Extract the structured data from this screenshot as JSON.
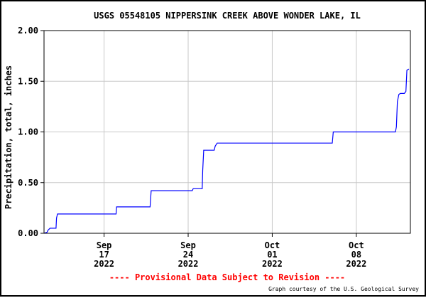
{
  "chart_data": {
    "type": "line",
    "title": "USGS 05548105 NIPPERSINK CREEK ABOVE WONDER LAKE, IL",
    "ylabel": "Precipitation, total, inches",
    "xlabel": "",
    "ylim": [
      0,
      2.0
    ],
    "xlim": [
      "2022-09-12",
      "2022-10-12"
    ],
    "y_ticks": [
      "0.00",
      "0.50",
      "1.00",
      "1.50",
      "2.00"
    ],
    "x_ticks": [
      {
        "date": "2022-09-17",
        "label": [
          "Sep",
          "17",
          "2022"
        ]
      },
      {
        "date": "2022-09-24",
        "label": [
          "Sep",
          "24",
          "2022"
        ]
      },
      {
        "date": "2022-10-01",
        "label": [
          "Oct",
          "01",
          "2022"
        ]
      },
      {
        "date": "2022-10-08",
        "label": [
          "Oct",
          "08",
          "2022"
        ]
      }
    ],
    "grid": true,
    "series": [
      {
        "color": "#0000ff",
        "points": [
          [
            "2022-09-12T00:00",
            0.0
          ],
          [
            "2022-09-12T06:00",
            0.01
          ],
          [
            "2022-09-12T08:00",
            0.03
          ],
          [
            "2022-09-12T12:00",
            0.05
          ],
          [
            "2022-09-13T00:00",
            0.05
          ],
          [
            "2022-09-13T01:00",
            0.15
          ],
          [
            "2022-09-13T03:00",
            0.19
          ],
          [
            "2022-09-18T00:00",
            0.19
          ],
          [
            "2022-09-18T01:00",
            0.26
          ],
          [
            "2022-09-20T20:00",
            0.26
          ],
          [
            "2022-09-20T22:00",
            0.42
          ],
          [
            "2022-09-24T08:00",
            0.42
          ],
          [
            "2022-09-24T10:00",
            0.44
          ],
          [
            "2022-09-25T04:00",
            0.44
          ],
          [
            "2022-09-25T05:00",
            0.62
          ],
          [
            "2022-09-25T07:00",
            0.82
          ],
          [
            "2022-09-26T04:00",
            0.82
          ],
          [
            "2022-09-26T06:00",
            0.86
          ],
          [
            "2022-09-26T10:00",
            0.89
          ],
          [
            "2022-10-06T00:00",
            0.89
          ],
          [
            "2022-10-06T02:00",
            1.0
          ],
          [
            "2022-10-11T06:00",
            1.0
          ],
          [
            "2022-10-11T08:00",
            1.05
          ],
          [
            "2022-10-11T10:00",
            1.3
          ],
          [
            "2022-10-11T13:00",
            1.37
          ],
          [
            "2022-10-11T16:00",
            1.38
          ],
          [
            "2022-10-12T00:00",
            1.38
          ],
          [
            "2022-10-12T03:00",
            1.4
          ],
          [
            "2022-10-12T05:00",
            1.61
          ],
          [
            "2022-10-12T09:00",
            1.62
          ]
        ]
      }
    ]
  },
  "footer": {
    "provisional": "---- Provisional Data Subject to Revision ----",
    "courtesy": "Graph courtesy of the U.S. Geological Survey"
  },
  "colors": {
    "series": "#0000ff",
    "provisional": "#ff0000",
    "grid": "#c8c8c8",
    "axis": "#000000"
  }
}
